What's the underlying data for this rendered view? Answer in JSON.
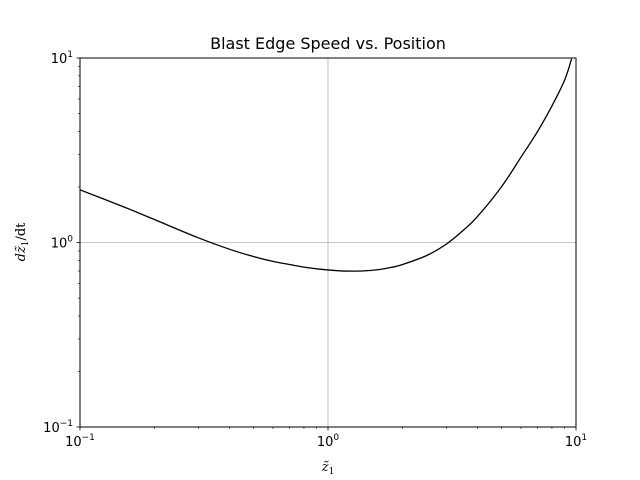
{
  "chart_data": {
    "type": "line",
    "title": "Blast Edge Speed vs. Position",
    "xlabel": "z̃1",
    "ylabel": "dz̃1/dt",
    "xscale": "log",
    "yscale": "log",
    "xlim": [
      0.1,
      10
    ],
    "ylim": [
      0.1,
      10
    ],
    "grid": "major",
    "x_ticks": [
      {
        "value": 0.1,
        "base": "10",
        "exp": "−1"
      },
      {
        "value": 1,
        "base": "10",
        "exp": "0"
      },
      {
        "value": 10,
        "base": "10",
        "exp": "1"
      }
    ],
    "y_ticks": [
      {
        "value": 0.1,
        "base": "10",
        "exp": "−1"
      },
      {
        "value": 1,
        "base": "10",
        "exp": "0"
      },
      {
        "value": 10,
        "base": "10",
        "exp": "1"
      }
    ],
    "series": [
      {
        "color": "#000000",
        "x": [
          0.1,
          0.15,
          0.2,
          0.3,
          0.4,
          0.5,
          0.6,
          0.7,
          0.8,
          0.9,
          1.0,
          1.1,
          1.2,
          1.4,
          1.6,
          1.8,
          2.0,
          2.5,
          3.0,
          3.5,
          4.0,
          5.0,
          6.0,
          7.0,
          8.0,
          9.0,
          9.6
        ],
        "y": [
          1.93,
          1.56,
          1.33,
          1.06,
          0.92,
          0.84,
          0.79,
          0.76,
          0.735,
          0.72,
          0.71,
          0.703,
          0.7,
          0.702,
          0.713,
          0.733,
          0.76,
          0.85,
          0.98,
          1.16,
          1.38,
          2.0,
          2.9,
          4.0,
          5.5,
          7.6,
          9.9
        ]
      }
    ]
  }
}
